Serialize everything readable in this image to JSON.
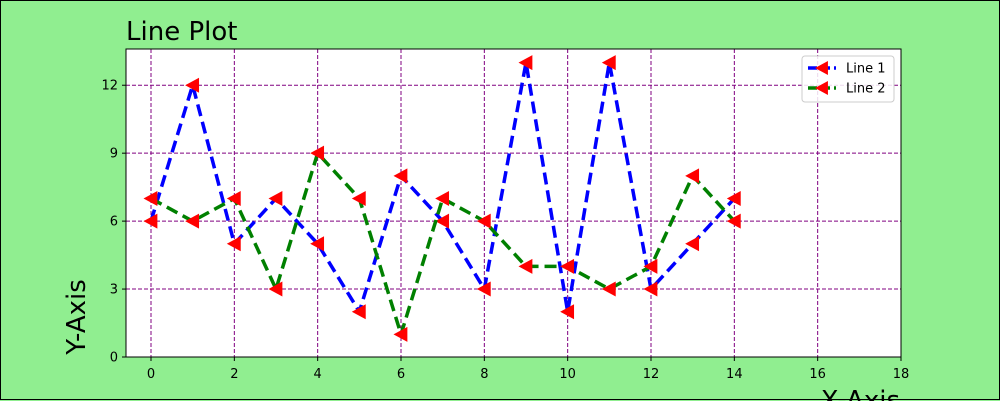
{
  "chart_data": {
    "type": "line",
    "title": "Line Plot",
    "xlabel": "X-Axis",
    "ylabel": "Y-Axis",
    "xlim": [
      -0.6,
      18
    ],
    "ylim": [
      0,
      13.6
    ],
    "xticks": [
      0,
      2,
      4,
      6,
      8,
      10,
      12,
      14,
      16,
      18
    ],
    "yticks": [
      0,
      3,
      6,
      9,
      12
    ],
    "grid": true,
    "grid_style": "dashed",
    "grid_color": "#800080",
    "background": "#90ee90",
    "plot_background": "#ffffff",
    "legend_position": "top-right",
    "marker": "left-triangle",
    "marker_color": "#ff0000",
    "x": [
      0,
      1,
      2,
      3,
      4,
      5,
      6,
      7,
      8,
      9,
      10,
      11,
      12,
      13,
      14
    ],
    "series": [
      {
        "name": "Line 1",
        "color": "#0000ff",
        "linestyle": "dashed",
        "values": [
          6,
          12,
          5,
          7,
          5,
          2,
          8,
          6,
          3,
          13,
          2,
          13,
          3,
          5,
          7
        ]
      },
      {
        "name": "Line 2",
        "color": "#008000",
        "linestyle": "dashed",
        "values": [
          7,
          6,
          7,
          3,
          9,
          7,
          1,
          7,
          6,
          4,
          4,
          3,
          4,
          8,
          6
        ]
      }
    ]
  }
}
